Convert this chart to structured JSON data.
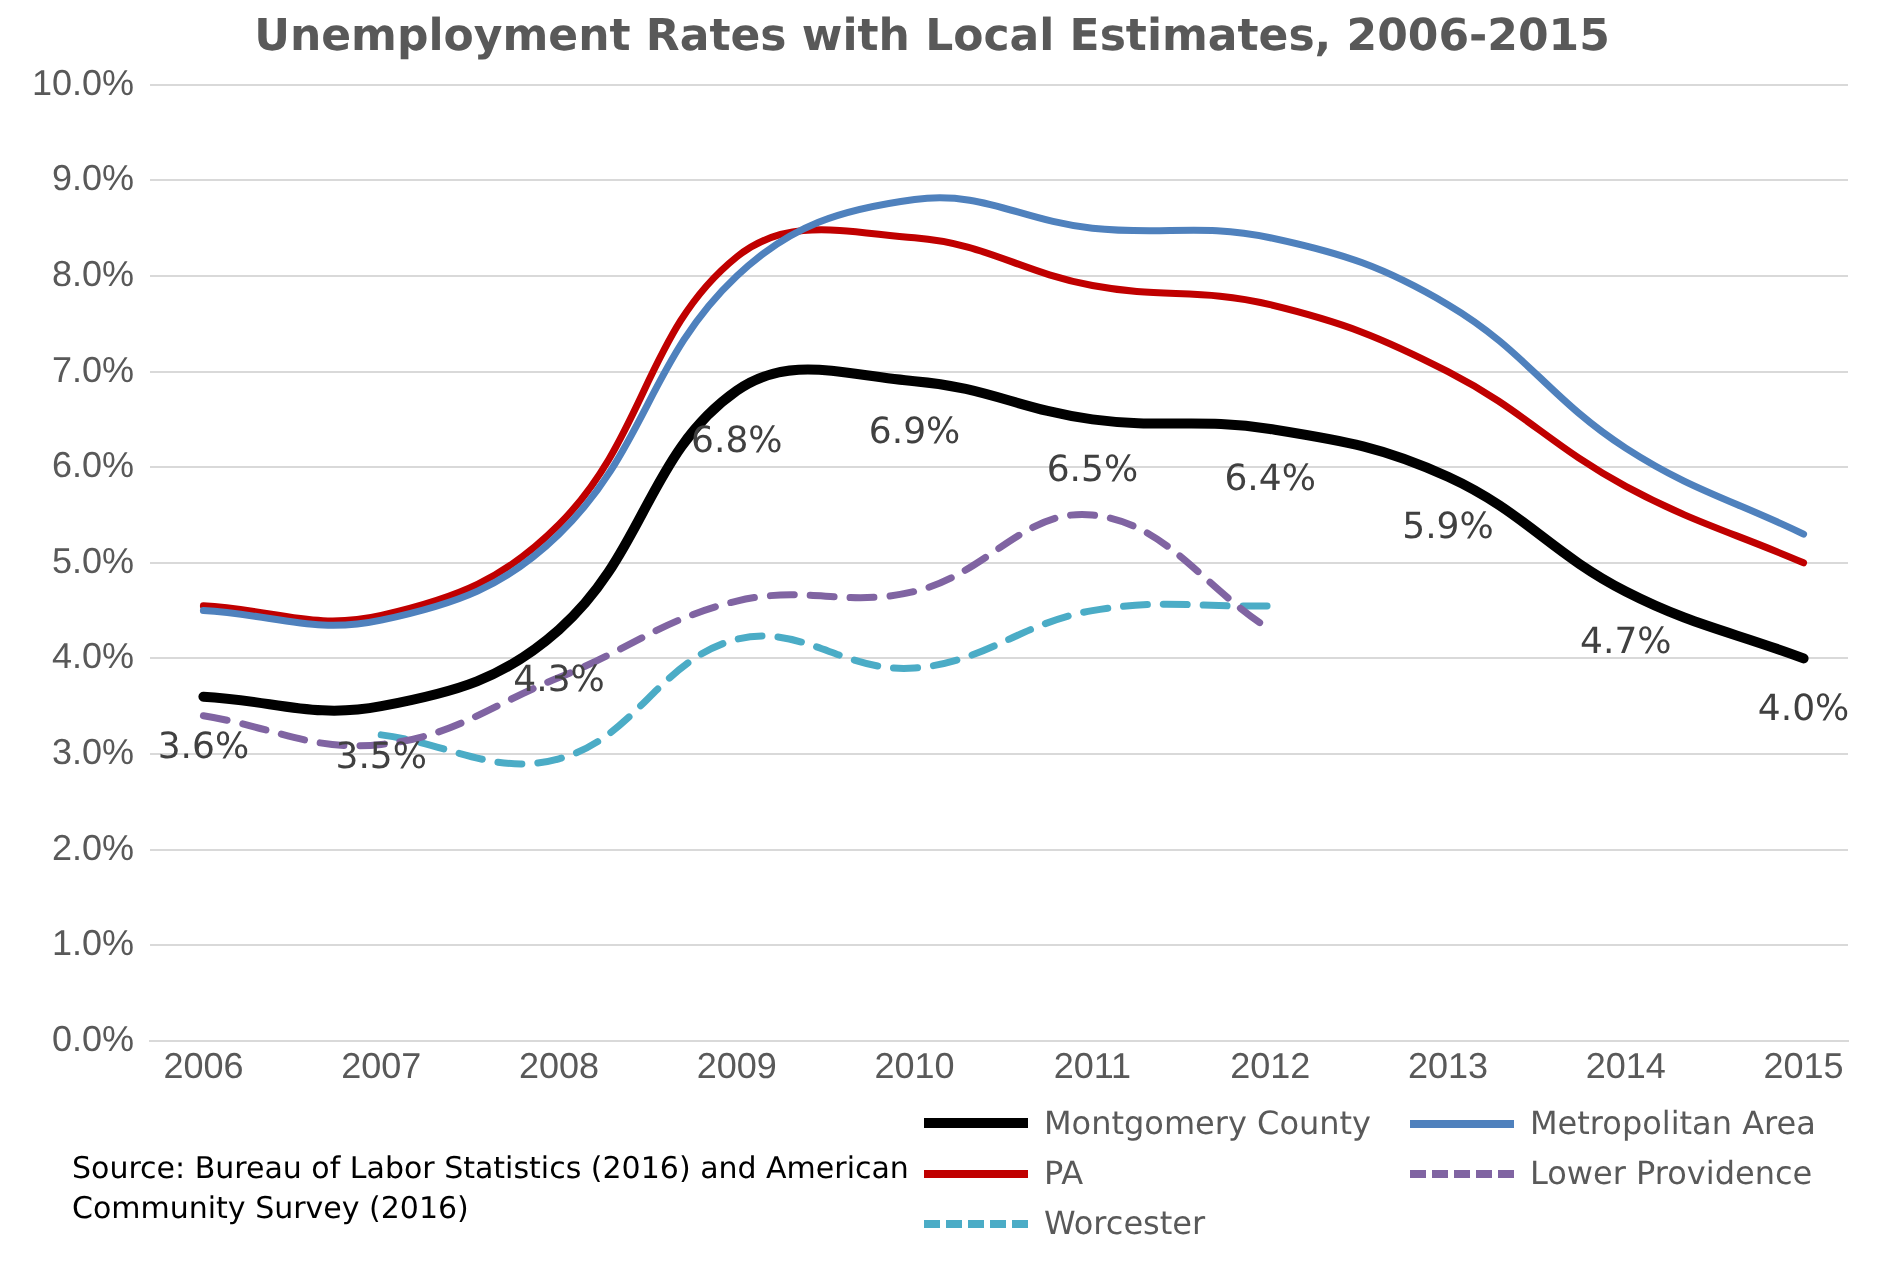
{
  "chart_data": {
    "type": "line",
    "title": "Unemployment Rates with Local Estimates, 2006-2015",
    "x": [
      2006,
      2007,
      2008,
      2009,
      2010,
      2011,
      2012,
      2013,
      2014,
      2015
    ],
    "xlim": [
      2005.7,
      2015.25
    ],
    "xticks": [
      2006,
      2007,
      2008,
      2009,
      2010,
      2011,
      2012,
      2013,
      2014,
      2015
    ],
    "ylim": [
      0,
      10
    ],
    "yticks": [
      {
        "value": 0,
        "label": "0.0%"
      },
      {
        "value": 1,
        "label": "1.0%"
      },
      {
        "value": 2,
        "label": "2.0%"
      },
      {
        "value": 3,
        "label": "3.0%"
      },
      {
        "value": 4,
        "label": "4.0%"
      },
      {
        "value": 5,
        "label": "5.0%"
      },
      {
        "value": 6,
        "label": "6.0%"
      },
      {
        "value": 7,
        "label": "7.0%"
      },
      {
        "value": 8,
        "label": "8.0%"
      },
      {
        "value": 9,
        "label": "9.0%"
      },
      {
        "value": 10,
        "label": "10.0%"
      }
    ],
    "grid": "y",
    "legend": "bottom right",
    "marker": "none",
    "series": [
      {
        "name": "Montgomery County",
        "color": "#000000",
        "values": [
          3.6,
          3.5,
          4.3,
          6.8,
          6.9,
          6.5,
          6.4,
          5.9,
          4.7,
          4.0
        ],
        "value_labels": [
          "3.6%",
          "3.5%",
          "4.3%",
          "6.8%",
          "6.9%",
          "6.5%",
          "6.4%",
          "5.9%",
          "4.7%",
          "4.0%"
        ]
      },
      {
        "name": "Metropolitan Area",
        "color": "#4f81bd",
        "values": [
          4.5,
          4.4,
          5.3,
          8.0,
          8.8,
          8.5,
          8.4,
          7.7,
          6.2,
          5.3
        ]
      },
      {
        "name": "PA",
        "color": "#c00000",
        "values": [
          4.55,
          4.45,
          5.4,
          8.2,
          8.4,
          7.9,
          7.7,
          7.0,
          5.8,
          5.0
        ]
      },
      {
        "name": "Lower Providence",
        "color": "#8064a2",
        "line_style": "dashed",
        "values": [
          3.4,
          3.1,
          3.8,
          4.6,
          4.7,
          5.5,
          4.3,
          null,
          null,
          null
        ]
      },
      {
        "name": "Worcester",
        "color": "#4bacc6",
        "line_style": "dashed",
        "values": [
          null,
          3.2,
          2.95,
          4.2,
          3.9,
          4.5,
          4.55,
          null,
          null,
          null
        ]
      }
    ],
    "annotations": [
      "Source: Bureau of Labor Statistics (2016) and American Community Survey (2016)"
    ]
  }
}
